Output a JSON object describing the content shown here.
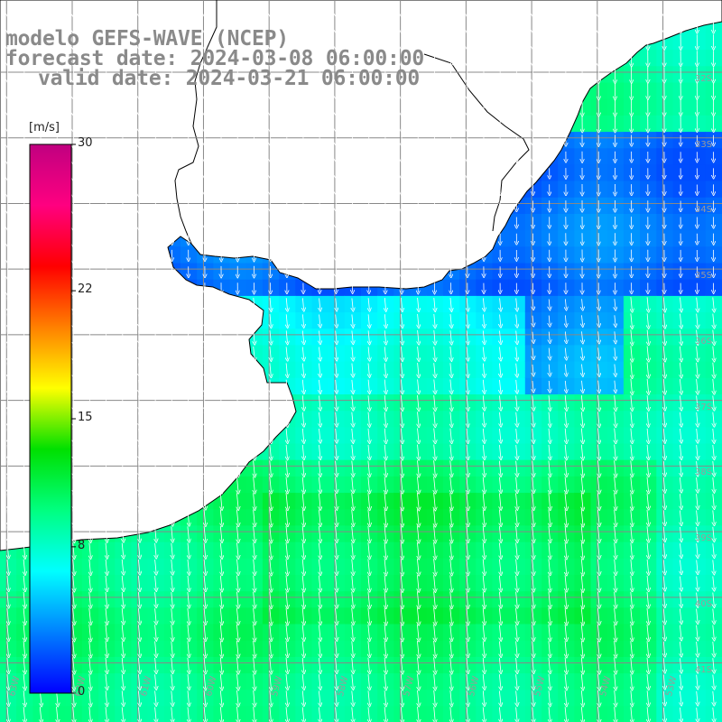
{
  "title": {
    "line1": "modelo GEFS-WAVE (NCEP)",
    "line2": "forecast date: 2024-03-08 06:00:00",
    "line3": "valid date: 2024-03-21 06:00:00"
  },
  "colorbar": {
    "unit": "[m/s]",
    "min": 0,
    "max": 30,
    "ticks": [
      "30",
      "22",
      "15",
      "8",
      "0"
    ],
    "tick_values": [
      30,
      22,
      15,
      8,
      0
    ],
    "colors": [
      "#0000ff",
      "#0080ff",
      "#00ffff",
      "#00ff80",
      "#00e000",
      "#ffff00",
      "#ff8000",
      "#ff0000",
      "#ff0080",
      "#c00080"
    ]
  },
  "latitudes": [
    "32S",
    "33S",
    "34S",
    "35S",
    "36S",
    "37S",
    "38S",
    "39S",
    "40S",
    "41S"
  ],
  "latitude_values": [
    -32,
    -33,
    -34,
    -35,
    -36,
    -37,
    -38,
    -39,
    -40,
    -41
  ],
  "longitudes": [
    "63W",
    "62W",
    "61W",
    "60W",
    "59W",
    "58W",
    "57W",
    "56W",
    "55W",
    "54W",
    "53W",
    "52W"
  ],
  "longitude_values": [
    -63,
    -62,
    -61,
    -60,
    -59,
    -58,
    -57,
    -56,
    -55,
    -54,
    -53,
    -52
  ],
  "chart_data": {
    "type": "heatmap",
    "title": "modelo GEFS-WAVE (NCEP)",
    "colorbar_label": "[m/s]",
    "xlim": [
      -63.1,
      -52.1
    ],
    "ylim": [
      -41.9,
      -30.9
    ],
    "grid": true,
    "legend": "left",
    "regions": [
      {
        "lon_range": [
          -60.5,
          -52
        ],
        "lat_range": [
          -35.5,
          -33
        ],
        "speed": 3
      },
      {
        "lon_range": [
          -57,
          -53.5
        ],
        "lat_range": [
          -37,
          -35.5
        ],
        "speed": 4
      },
      {
        "lon_range": [
          -61,
          -55
        ],
        "lat_range": [
          -37,
          -35.5
        ],
        "speed": 7
      },
      {
        "lon_range": [
          -63,
          -53
        ],
        "lat_range": [
          -42,
          -38
        ],
        "speed": 10
      },
      {
        "lon_range": [
          -59,
          -54
        ],
        "lat_range": [
          -40.5,
          -38.5
        ],
        "speed": 11
      }
    ]
  }
}
